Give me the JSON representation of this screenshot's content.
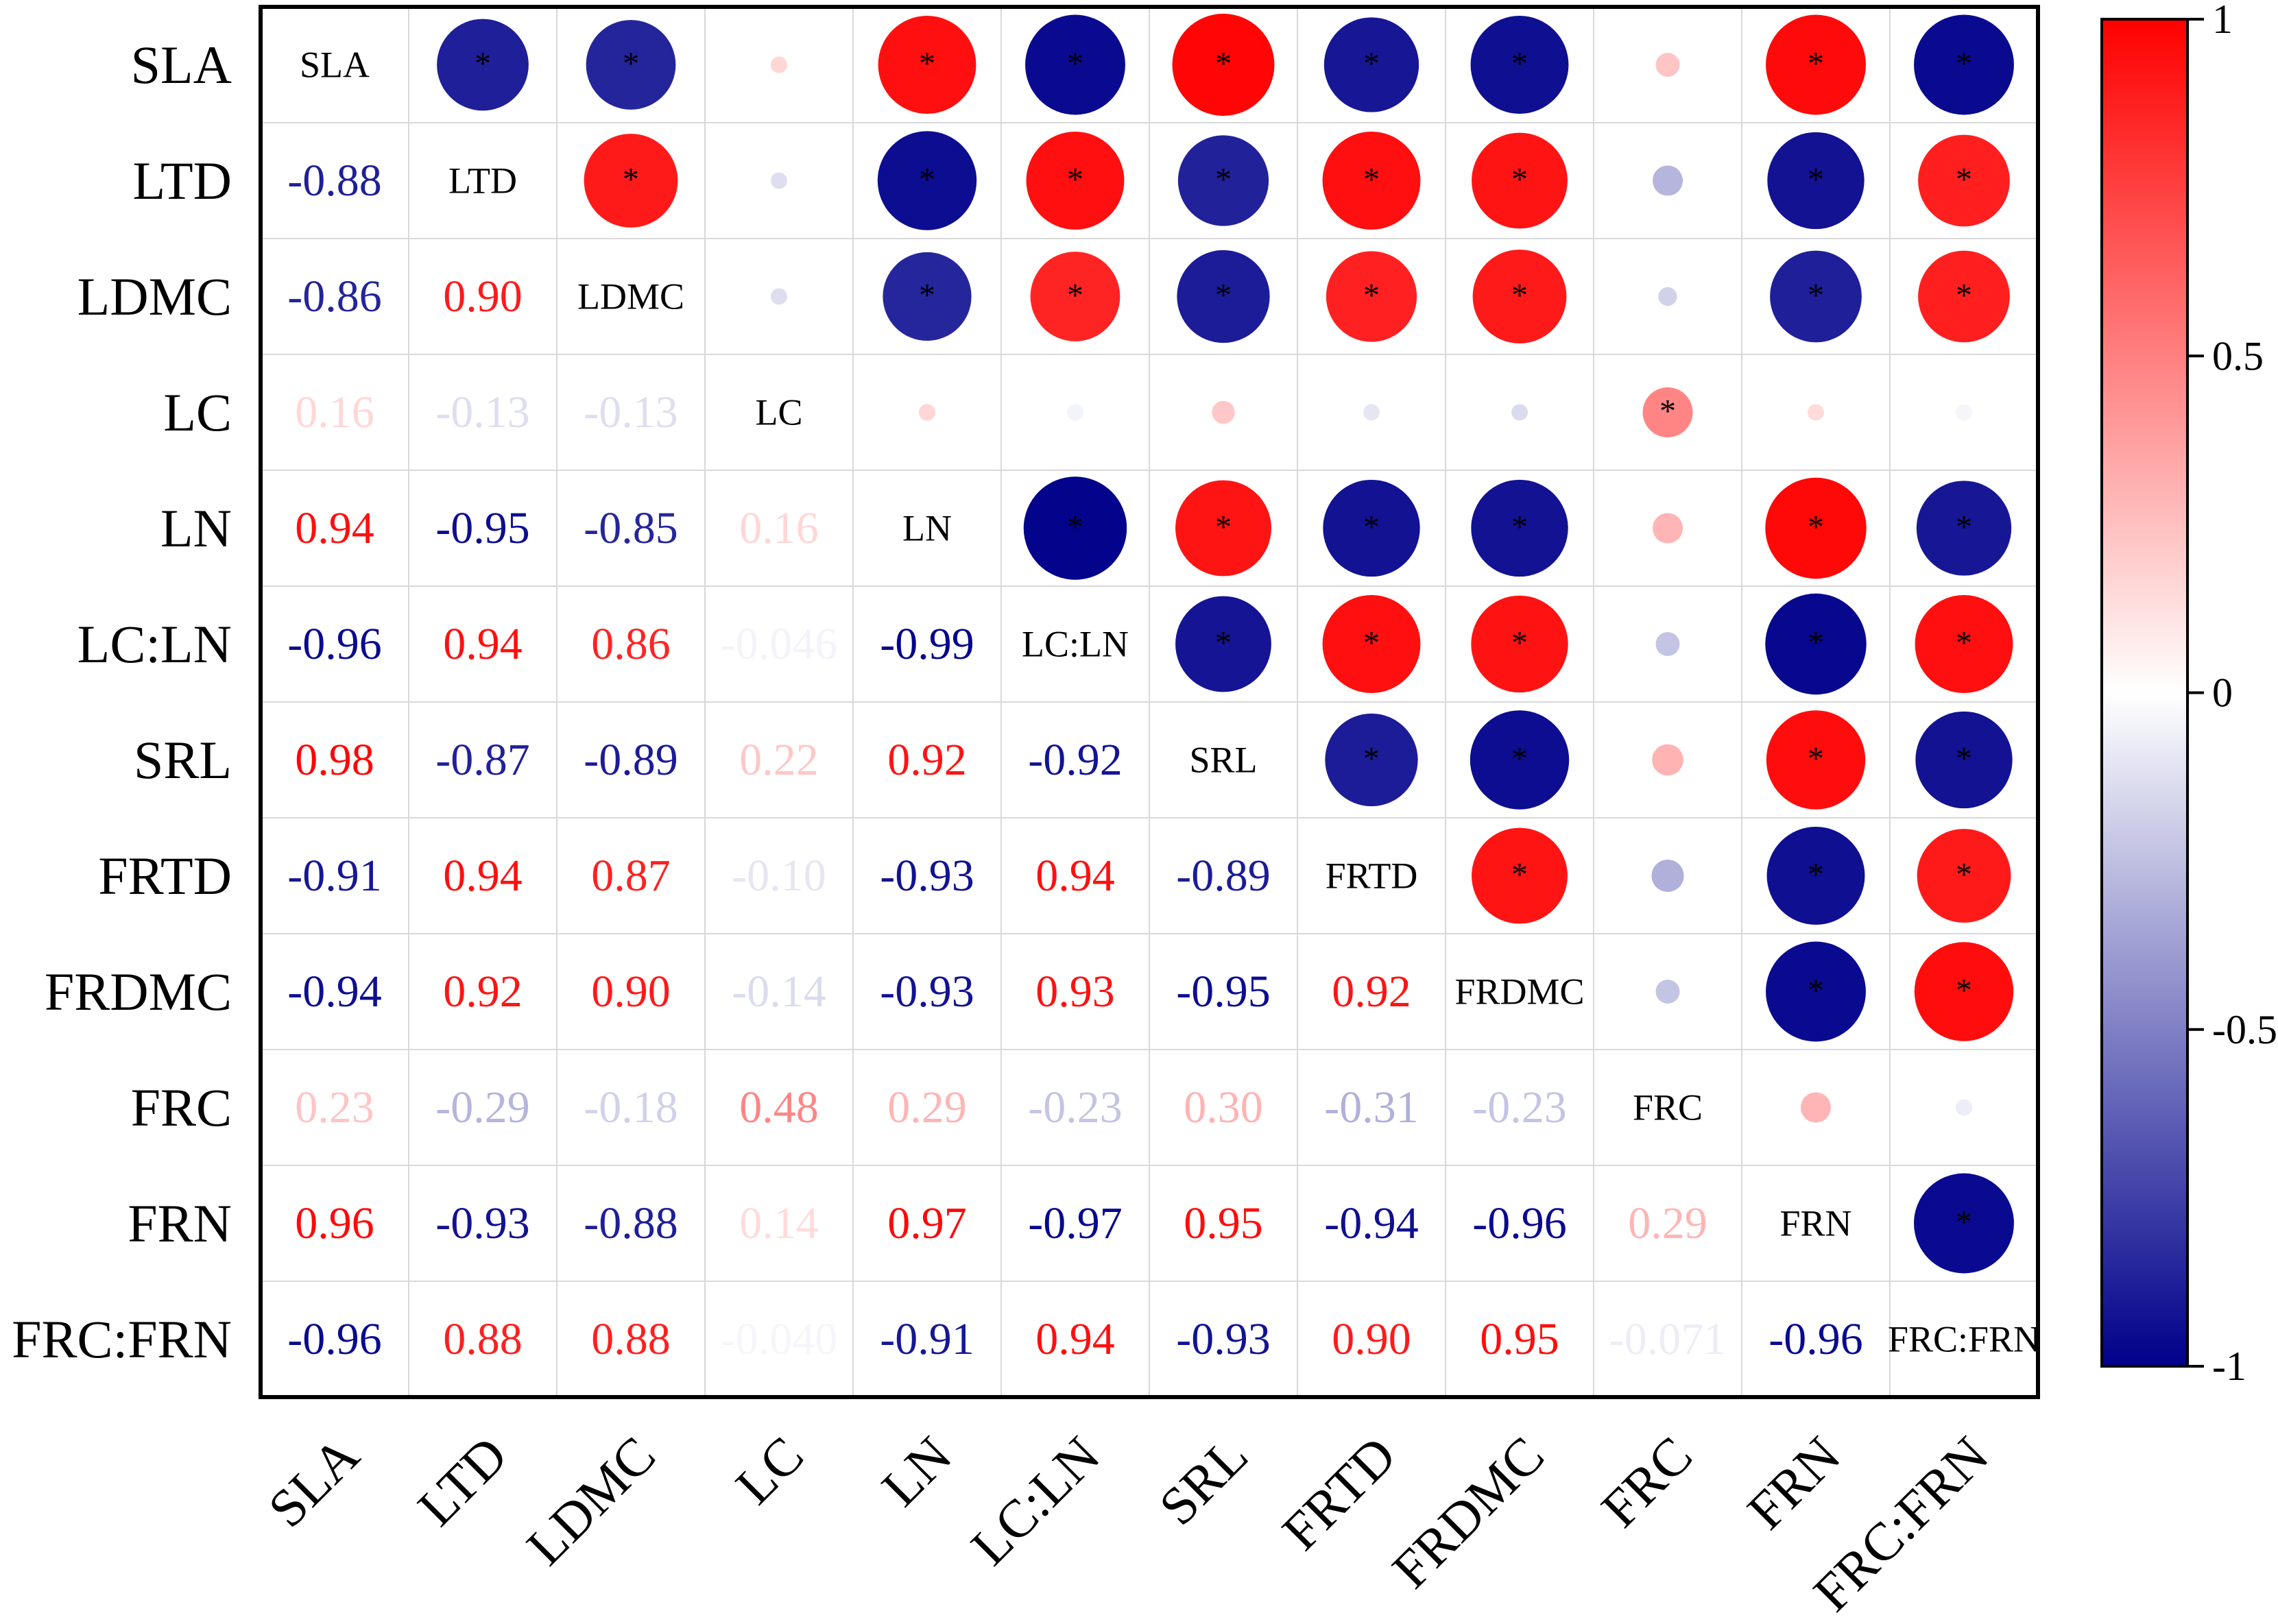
{
  "chart_data": {
    "type": "heatmap",
    "title": "",
    "variables": [
      "SLA",
      "LTD",
      "LDMC",
      "LC",
      "LN",
      "LC:LN",
      "SRL",
      "FRTD",
      "FRDMC",
      "FRC",
      "FRN",
      "FRC:FRN"
    ],
    "matrix": [
      [
        1,
        -0.88,
        -0.86,
        0.16,
        0.94,
        -0.96,
        0.98,
        -0.91,
        -0.94,
        0.23,
        0.96,
        -0.96
      ],
      [
        -0.88,
        1,
        0.9,
        -0.13,
        -0.95,
        0.94,
        -0.87,
        0.94,
        0.92,
        -0.29,
        -0.93,
        0.88
      ],
      [
        -0.86,
        0.9,
        1,
        -0.13,
        -0.85,
        0.86,
        -0.89,
        0.87,
        0.9,
        -0.18,
        -0.88,
        0.88
      ],
      [
        0.16,
        -0.13,
        -0.13,
        1,
        0.16,
        -0.046,
        0.22,
        -0.1,
        -0.14,
        0.48,
        0.14,
        -0.04
      ],
      [
        0.94,
        -0.95,
        -0.85,
        0.16,
        1,
        -0.99,
        0.92,
        -0.93,
        -0.93,
        0.29,
        0.97,
        -0.91
      ],
      [
        -0.96,
        0.94,
        0.86,
        -0.046,
        -0.99,
        1,
        -0.92,
        0.94,
        0.93,
        -0.23,
        -0.97,
        0.94
      ],
      [
        0.98,
        -0.87,
        -0.89,
        0.22,
        0.92,
        -0.92,
        1,
        -0.89,
        -0.95,
        0.3,
        0.95,
        -0.93
      ],
      [
        -0.91,
        0.94,
        0.87,
        -0.1,
        -0.93,
        0.94,
        -0.89,
        1,
        0.92,
        -0.31,
        -0.94,
        0.9
      ],
      [
        -0.94,
        0.92,
        0.9,
        -0.14,
        -0.93,
        0.93,
        -0.95,
        0.92,
        1,
        -0.23,
        -0.96,
        0.95
      ],
      [
        0.23,
        -0.29,
        -0.18,
        0.48,
        0.29,
        -0.23,
        0.3,
        -0.31,
        -0.23,
        1,
        0.29,
        -0.071
      ],
      [
        0.96,
        -0.93,
        -0.88,
        0.14,
        0.97,
        -0.97,
        0.95,
        -0.94,
        -0.96,
        0.29,
        1,
        -0.96
      ],
      [
        -0.96,
        0.88,
        0.88,
        -0.04,
        -0.91,
        0.94,
        -0.93,
        0.9,
        0.95,
        -0.071,
        -0.96,
        1
      ]
    ],
    "lower_labels": [
      [
        null,
        null,
        null,
        null,
        null,
        null,
        null,
        null,
        null,
        null,
        null,
        null
      ],
      [
        "-0.88",
        null,
        null,
        null,
        null,
        null,
        null,
        null,
        null,
        null,
        null,
        null
      ],
      [
        "-0.86",
        "0.90",
        null,
        null,
        null,
        null,
        null,
        null,
        null,
        null,
        null,
        null
      ],
      [
        "0.16",
        "-0.13",
        "-0.13",
        null,
        null,
        null,
        null,
        null,
        null,
        null,
        null,
        null
      ],
      [
        "0.94",
        "-0.95",
        "-0.85",
        "0.16",
        null,
        null,
        null,
        null,
        null,
        null,
        null,
        null
      ],
      [
        "-0.96",
        "0.94",
        "0.86",
        "-0.046",
        "-0.99",
        null,
        null,
        null,
        null,
        null,
        null,
        null
      ],
      [
        "0.98",
        "-0.87",
        "-0.89",
        "0.22",
        "0.92",
        "-0.92",
        null,
        null,
        null,
        null,
        null,
        null
      ],
      [
        "-0.91",
        "0.94",
        "0.87",
        "-0.10",
        "-0.93",
        "0.94",
        "-0.89",
        null,
        null,
        null,
        null,
        null
      ],
      [
        "-0.94",
        "0.92",
        "0.90",
        "-0.14",
        "-0.93",
        "0.93",
        "-0.95",
        "0.92",
        null,
        null,
        null,
        null
      ],
      [
        "0.23",
        "-0.29",
        "-0.18",
        "0.48",
        "0.29",
        "-0.23",
        "0.30",
        "-0.31",
        "-0.23",
        null,
        null,
        null
      ],
      [
        "0.96",
        "-0.93",
        "-0.88",
        "0.14",
        "0.97",
        "-0.97",
        "0.95",
        "-0.94",
        "-0.96",
        "0.29",
        null,
        null
      ],
      [
        "-0.96",
        "0.88",
        "0.88",
        "-0.040",
        "-0.91",
        "0.94",
        "-0.93",
        "0.90",
        "0.95",
        "-0.071",
        "-0.96",
        null
      ]
    ],
    "significance_marker": "*",
    "significant_pairs": [
      [
        0,
        1
      ],
      [
        0,
        2
      ],
      [
        0,
        4
      ],
      [
        0,
        5
      ],
      [
        0,
        6
      ],
      [
        0,
        7
      ],
      [
        0,
        8
      ],
      [
        0,
        10
      ],
      [
        0,
        11
      ],
      [
        1,
        2
      ],
      [
        1,
        4
      ],
      [
        1,
        5
      ],
      [
        1,
        6
      ],
      [
        1,
        7
      ],
      [
        1,
        8
      ],
      [
        1,
        10
      ],
      [
        1,
        11
      ],
      [
        2,
        4
      ],
      [
        2,
        5
      ],
      [
        2,
        6
      ],
      [
        2,
        7
      ],
      [
        2,
        8
      ],
      [
        2,
        10
      ],
      [
        2,
        11
      ],
      [
        3,
        9
      ],
      [
        4,
        5
      ],
      [
        4,
        6
      ],
      [
        4,
        7
      ],
      [
        4,
        8
      ],
      [
        4,
        10
      ],
      [
        4,
        11
      ],
      [
        5,
        6
      ],
      [
        5,
        7
      ],
      [
        5,
        8
      ],
      [
        5,
        10
      ],
      [
        5,
        11
      ],
      [
        6,
        7
      ],
      [
        6,
        8
      ],
      [
        6,
        10
      ],
      [
        6,
        11
      ],
      [
        7,
        8
      ],
      [
        7,
        10
      ],
      [
        7,
        11
      ],
      [
        8,
        10
      ],
      [
        8,
        11
      ],
      [
        10,
        11
      ]
    ],
    "upper_shape": "circle",
    "lower_shape": "number",
    "colorbar": {
      "range": [
        -1,
        1
      ],
      "ticks": [
        "1",
        "0.5",
        "0",
        "-0.5",
        "-1"
      ],
      "tick_values": [
        1,
        0.5,
        0,
        -0.5,
        -1
      ],
      "low_color": "#00008b",
      "mid_color": "#ffffff",
      "high_color": "#ff0000",
      "placement": "right"
    }
  }
}
